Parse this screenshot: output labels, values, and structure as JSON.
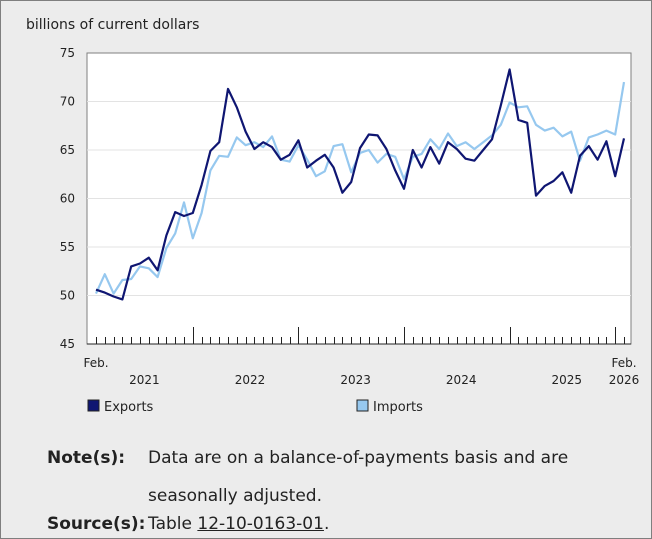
{
  "chart_data": {
    "type": "line",
    "ylabel": "billions of current dollars",
    "ylim": [
      45,
      75
    ],
    "yticks": [
      45,
      50,
      55,
      60,
      65,
      70,
      75
    ],
    "x_start_label": "Feb.",
    "x_end_label": "Feb.",
    "x_year_labels": [
      {
        "label": "2021",
        "month_index": 5.5
      },
      {
        "label": "2022",
        "month_index": 17.5
      },
      {
        "label": "2023",
        "month_index": 29.5
      },
      {
        "label": "2024",
        "month_index": 41.5
      },
      {
        "label": "2025",
        "month_index": 53.5
      },
      {
        "label": "2026",
        "month_index": 60
      }
    ],
    "x_year_ticks": [
      11,
      23,
      35,
      47,
      59
    ],
    "x_month_count": 61,
    "series": [
      {
        "name": "Exports",
        "color": "#0f1672",
        "values": [
          50.6,
          50.3,
          49.9,
          49.6,
          53.0,
          53.3,
          53.9,
          52.6,
          56.2,
          58.6,
          58.2,
          58.5,
          61.4,
          64.9,
          65.8,
          71.3,
          69.4,
          66.9,
          65.1,
          65.8,
          65.3,
          64.0,
          64.5,
          66.0,
          63.2,
          63.9,
          64.5,
          63.2,
          60.6,
          61.7,
          65.2,
          66.6,
          66.5,
          65.1,
          62.9,
          61.0,
          65.0,
          63.2,
          65.3,
          63.6,
          65.8,
          65.1,
          64.1,
          63.9,
          65.0,
          66.1,
          69.6,
          73.3,
          68.1,
          67.8,
          60.3,
          61.3,
          61.8,
          62.7,
          60.6,
          64.4,
          65.4,
          64.0,
          65.9,
          62.3,
          66.2
        ]
      },
      {
        "name": "Imports",
        "color": "#96c8ef",
        "values": [
          50.2,
          52.2,
          50.2,
          51.6,
          51.7,
          53.0,
          52.8,
          51.9,
          54.9,
          56.4,
          59.6,
          55.9,
          58.5,
          62.9,
          64.4,
          64.3,
          66.3,
          65.5,
          65.8,
          65.3,
          66.4,
          64.0,
          63.8,
          65.5,
          64.0,
          62.3,
          62.8,
          65.4,
          65.6,
          62.7,
          64.7,
          65.0,
          63.7,
          64.6,
          64.3,
          62.0,
          64.3,
          64.6,
          66.1,
          65.1,
          66.7,
          65.4,
          65.8,
          65.1,
          65.8,
          66.5,
          67.6,
          69.9,
          69.4,
          69.5,
          67.6,
          67.0,
          67.3,
          66.4,
          66.9,
          63.9,
          66.3,
          66.6,
          67.0,
          66.6,
          72.0
        ]
      }
    ],
    "legend": [
      {
        "label": "Exports",
        "color": "#0f1672"
      },
      {
        "label": "Imports",
        "color": "#96c8ef"
      }
    ],
    "legend_position": "bottom"
  },
  "notes": {
    "note_label": "Note(s):",
    "note_text": "Data are on a balance-of-payments basis and are seasonally adjusted.",
    "source_label": "Source(s):",
    "source_prefix": "Table ",
    "source_link": "12-10-0163-01",
    "source_suffix": "."
  }
}
